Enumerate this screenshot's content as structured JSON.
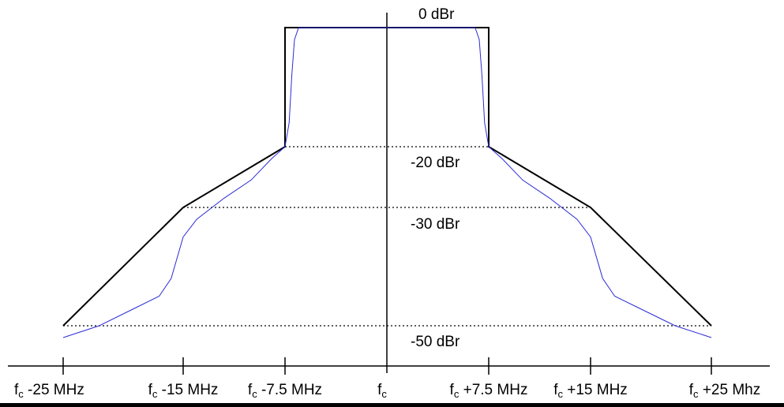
{
  "level_labels": {
    "level_0": "0 dBr",
    "level_20": "-20 dBr",
    "level_30": "-30 dBr",
    "level_50": "-50 dBr"
  },
  "frequency_labels": [
    {
      "main": "f",
      "sub": "c",
      "offset": " -25 MHz"
    },
    {
      "main": "f",
      "sub": "c",
      "offset": " -15 MHz"
    },
    {
      "main": "f",
      "sub": "c",
      "offset": " -7.5 MHz"
    },
    {
      "main": "f",
      "sub": "c",
      "offset": ""
    },
    {
      "main": "f",
      "sub": "c",
      "offset": " +7.5 MHz"
    },
    {
      "main": "f",
      "sub": "c",
      "offset": " +15 MHz"
    },
    {
      "main": "f",
      "sub": "c",
      "offset": " +25 Mhz"
    }
  ],
  "colors": {
    "mask": "#000000",
    "spectrum": "#2b2bd6",
    "reference_lines": "#000000"
  },
  "chart_data": {
    "type": "line",
    "x_unit": "MHz offset from fc",
    "y_unit": "dBr",
    "x_ticks": [
      -25,
      -15,
      -7.5,
      0,
      7.5,
      15,
      25
    ],
    "reference_levels": [
      -20,
      -30,
      -50
    ],
    "mask": {
      "x": [
        -25,
        -15,
        -7.5,
        -7.5,
        7.5,
        7.5,
        15,
        25
      ],
      "y": [
        -50,
        -30,
        -20,
        0,
        0,
        -20,
        -30,
        -50
      ]
    },
    "spectrum": {
      "x": [
        -25,
        -22,
        -19,
        -17,
        -16,
        -15,
        -14,
        -12,
        -10,
        -8.5,
        -7.5,
        -7.2,
        -7.0,
        -6.8,
        -6.5,
        0,
        6.5,
        6.8,
        7.0,
        7.2,
        7.5,
        8.5,
        10,
        12,
        14,
        15,
        16,
        17,
        19,
        22,
        25
      ],
      "y": [
        -52,
        -50,
        -47,
        -45,
        -42,
        -35,
        -32,
        -28.5,
        -25.5,
        -22,
        -20,
        -16,
        -8,
        -2,
        0,
        0,
        0,
        -2,
        -8,
        -16,
        -20,
        -22,
        -25.5,
        -28.5,
        -32,
        -35,
        -42,
        -45,
        -47,
        -50,
        -52
      ]
    }
  }
}
